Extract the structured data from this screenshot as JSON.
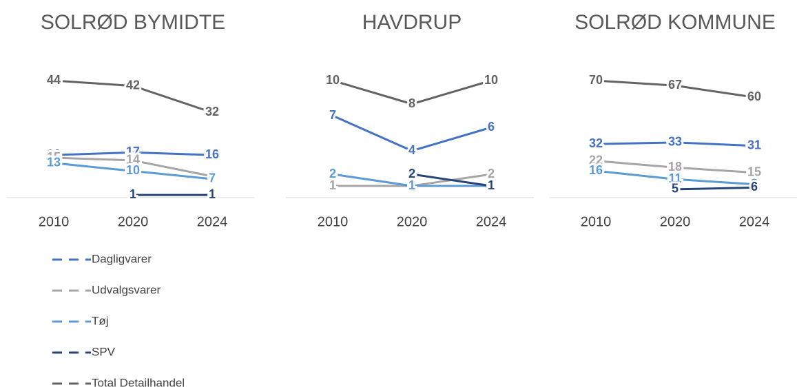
{
  "chart_data": [
    {
      "type": "line",
      "title": "SOLRØD BYMIDTE",
      "categories": [
        "2010",
        "2020",
        "2024"
      ],
      "series": [
        {
          "name": "Dagligvarer",
          "color": "#4472c4",
          "values": [
            16,
            17,
            16
          ]
        },
        {
          "name": "Udvalgsvarer",
          "color": "#a5a5a5",
          "values": [
            15,
            14,
            8
          ]
        },
        {
          "name": "Tøj",
          "color": "#5b9bd5",
          "values": [
            13,
            10,
            7
          ]
        },
        {
          "name": "SPV",
          "color": "#264478",
          "values": [
            null,
            1,
            1
          ]
        },
        {
          "name": "Total Detailhandel",
          "color": "#636363",
          "values": [
            44,
            42,
            32
          ]
        }
      ]
    },
    {
      "type": "line",
      "title": "HAVDRUP",
      "categories": [
        "2010",
        "2020",
        "2024"
      ],
      "series": [
        {
          "color": "#4472c4",
          "values": [
            7,
            4,
            6
          ]
        },
        {
          "color": "#a5a5a5",
          "values": [
            1,
            1,
            2
          ]
        },
        {
          "color": "#5b9bd5",
          "values": [
            2,
            1,
            1
          ]
        },
        {
          "color": "#264478",
          "values": [
            null,
            2,
            1
          ]
        },
        {
          "color": "#636363",
          "values": [
            10,
            8,
            10
          ]
        }
      ]
    },
    {
      "type": "line",
      "title": "SOLRØD KOMMUNE",
      "categories": [
        "2010",
        "2020",
        "2024"
      ],
      "series": [
        {
          "color": "#4472c4",
          "values": [
            32,
            33,
            31
          ]
        },
        {
          "color": "#a5a5a5",
          "values": [
            22,
            18,
            15
          ]
        },
        {
          "color": "#5b9bd5",
          "values": [
            16,
            11,
            8
          ]
        },
        {
          "color": "#264478",
          "values": [
            null,
            5,
            6
          ]
        },
        {
          "color": "#636363",
          "values": [
            70,
            67,
            60
          ]
        }
      ]
    }
  ]
}
